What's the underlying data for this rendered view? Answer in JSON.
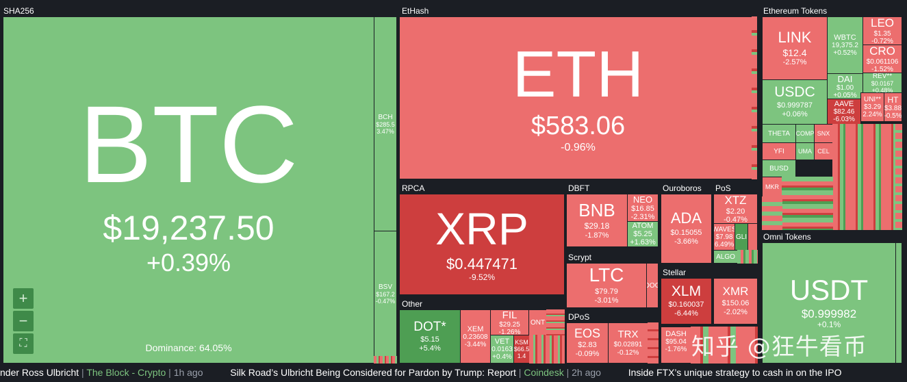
{
  "groups": {
    "sha256": "SHA256",
    "ethash": "EtHash",
    "ethereum_tokens": "Ethereum Tokens",
    "rpca": "RPCA",
    "dbft": "DBFT",
    "ouroboros": "Ouroboros",
    "pos": "PoS",
    "scrypt": "Scrypt",
    "stellar": "Stellar",
    "other": "Other",
    "dpos": "DPoS",
    "omni_tokens": "Omni Tokens"
  },
  "btc": {
    "symbol": "BTC",
    "price": "$19,237.50",
    "change": "+0.39%",
    "dominance": "Dominance: 64.05%"
  },
  "bch": {
    "symbol": "BCH",
    "price": "$285.5",
    "change": "3.47%"
  },
  "bsv": {
    "symbol": "BSV",
    "price": "$167.2",
    "change": "-0.47%"
  },
  "eth": {
    "symbol": "ETH",
    "price": "$583.06",
    "change": "-0.96%"
  },
  "xrp": {
    "symbol": "XRP",
    "price": "$0.447471",
    "change": "-9.52%"
  },
  "bnb": {
    "symbol": "BNB",
    "price": "$29.18",
    "change": "-1.87%"
  },
  "neo": {
    "symbol": "NEO",
    "price": "$16.85",
    "change": "-2.31%"
  },
  "atom": {
    "symbol": "ATOM",
    "price": "$5.25",
    "change": "+1.63%"
  },
  "ada": {
    "symbol": "ADA",
    "price": "$0.15055",
    "change": "-3.66%"
  },
  "xtz": {
    "symbol": "XTZ",
    "price": "$2.20",
    "change": "-0.47%"
  },
  "waves": {
    "symbol": "WAVES",
    "price": "$7.98",
    "change": "6.49%"
  },
  "algo": {
    "symbol": "ALGO"
  },
  "glm": {
    "symbol": "GLI"
  },
  "ltc": {
    "symbol": "LTC",
    "price": "$79.79",
    "change": "-3.01%"
  },
  "dog": {
    "symbol": "DOG"
  },
  "xlm": {
    "symbol": "XLM",
    "price": "$0.160037",
    "change": "-6.44%"
  },
  "xmr": {
    "symbol": "XMR",
    "price": "$150.06",
    "change": "-2.02%"
  },
  "dot": {
    "symbol": "DOT*",
    "price": "$5.15",
    "change": "+5.4%"
  },
  "xem": {
    "symbol": "XEM",
    "price": "0.23608",
    "change": "-3.44%"
  },
  "fil": {
    "symbol": "FIL",
    "price": "$29.25",
    "change": "-1.26%"
  },
  "ont": {
    "symbol": "ONT"
  },
  "vet": {
    "symbol": "VET",
    "price": "0.0163",
    "change": "+0.4%"
  },
  "ksm": {
    "symbol": "KSM",
    "price": "$66.5",
    "change": "1.4"
  },
  "eos": {
    "symbol": "EOS",
    "price": "$2.83",
    "change": "-0.09%"
  },
  "trx": {
    "symbol": "TRX",
    "price": "$0.02891",
    "change": "-0.12%"
  },
  "dash": {
    "symbol": "DASH",
    "price": "$95.04",
    "change": "-1.76%"
  },
  "link": {
    "symbol": "LINK",
    "price": "$12.4",
    "change": "-2.57%"
  },
  "wbtc": {
    "symbol": "WBTC",
    "price": "19,375.2",
    "change": "+0.52%"
  },
  "leo": {
    "symbol": "LEO",
    "price": "$1.35",
    "change": "-0.72%"
  },
  "cro": {
    "symbol": "CRO",
    "price": "$0.061106",
    "change": "-1.52%"
  },
  "rev": {
    "symbol": "REV**",
    "price": "$0.0167",
    "change": "+0.48%"
  },
  "usdc": {
    "symbol": "USDC",
    "price": "$0.999787",
    "change": "+0.06%"
  },
  "dai": {
    "symbol": "DAI",
    "price": "$1.00",
    "change": "+0.05%"
  },
  "aave": {
    "symbol": "AAVE",
    "price": "$82.46",
    "change": "-6.03%"
  },
  "uni": {
    "symbol": "UNI**",
    "price": "$3.29",
    "change": "2.24%"
  },
  "ht": {
    "symbol": "HT",
    "price": "$3.88",
    "change": "-0.5%"
  },
  "theta": {
    "symbol": "THETA"
  },
  "comp": {
    "symbol": "COMP"
  },
  "snx": {
    "symbol": "SNX"
  },
  "yfi": {
    "symbol": "YFI"
  },
  "uma": {
    "symbol": "UMA"
  },
  "cel": {
    "symbol": "CEL"
  },
  "busd": {
    "symbol": "BUSD"
  },
  "mkr": {
    "symbol": "MKR"
  },
  "usdt": {
    "symbol": "USDT",
    "price": "$0.999982",
    "change": "+0.1%"
  },
  "zoom": {
    "in": "+",
    "out": "−",
    "fit": "⛶"
  },
  "ticker": [
    {
      "title": "nder Ross Ulbricht",
      "source": "The Block - Crypto",
      "ago": "1h ago"
    },
    {
      "title": "Silk Road’s Ulbricht Being Considered for Pardon by Trump: Report",
      "source": "Coindesk",
      "ago": "2h ago"
    },
    {
      "title": "Inside FTX’s unique strategy to cash in on the IPO",
      "source": "",
      "ago": ""
    }
  ],
  "watermark": "知乎 @狂牛看币",
  "colors": {
    "up": "#7dc47f",
    "up_dark": "#4e9e53",
    "down": "#ec6e6e",
    "down_dark": "#cd3e3e",
    "background": "#1b1e24"
  }
}
